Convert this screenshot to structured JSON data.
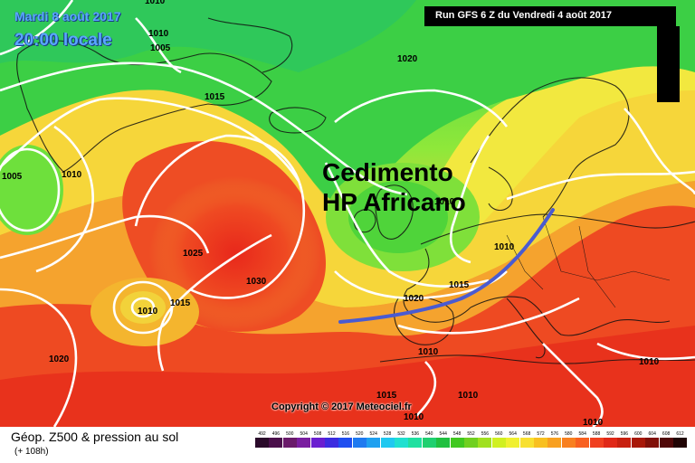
{
  "header": {
    "date_line": "Mardi 8 août 2017",
    "time_line": "20:00 locale",
    "run_info": "Run GFS 6 Z du Vendredi 4 août 2017"
  },
  "annotation": {
    "line1": "Cedimento",
    "line2": "HP Africano",
    "arrow_color": "#4a5bd1"
  },
  "isobar_labels": [
    "1010",
    "1005",
    "1020",
    "1015",
    "1010",
    "1005",
    "1010",
    "1010",
    "1025",
    "1030",
    "1015",
    "1010",
    "1020",
    "1015",
    "1010",
    "1020",
    "1010",
    "1015",
    "1010",
    "1010",
    "1010",
    "1010"
  ],
  "copyright": "Copyright © 2017 Meteociel.fr",
  "legend": {
    "title": "Géop. Z500 & pression au sol",
    "subtitle": "(+ 108h)",
    "scale_labels": [
      "492",
      "496",
      "500",
      "504",
      "508",
      "512",
      "516",
      "520",
      "524",
      "528",
      "532",
      "536",
      "540",
      "544",
      "548",
      "552",
      "556",
      "560",
      "564",
      "568",
      "572",
      "576",
      "580",
      "584",
      "588",
      "592",
      "596",
      "600",
      "604",
      "608",
      "612"
    ],
    "scale_colors": [
      "#2a0a2a",
      "#4b0f4b",
      "#6a1a6a",
      "#7a1ea0",
      "#6a1ed0",
      "#3c2ce0",
      "#1f4ef0",
      "#1f7af0",
      "#1fa0f0",
      "#1fc8f0",
      "#1fe0d0",
      "#1fe0a0",
      "#1fd070",
      "#20c040",
      "#40c820",
      "#70d020",
      "#a0e020",
      "#d0f020",
      "#f0f030",
      "#f8e030",
      "#f8c020",
      "#f8a020",
      "#f88020",
      "#f86020",
      "#f04020",
      "#e02818",
      "#c82010",
      "#a81808",
      "#801008",
      "#500808",
      "#200404"
    ]
  }
}
